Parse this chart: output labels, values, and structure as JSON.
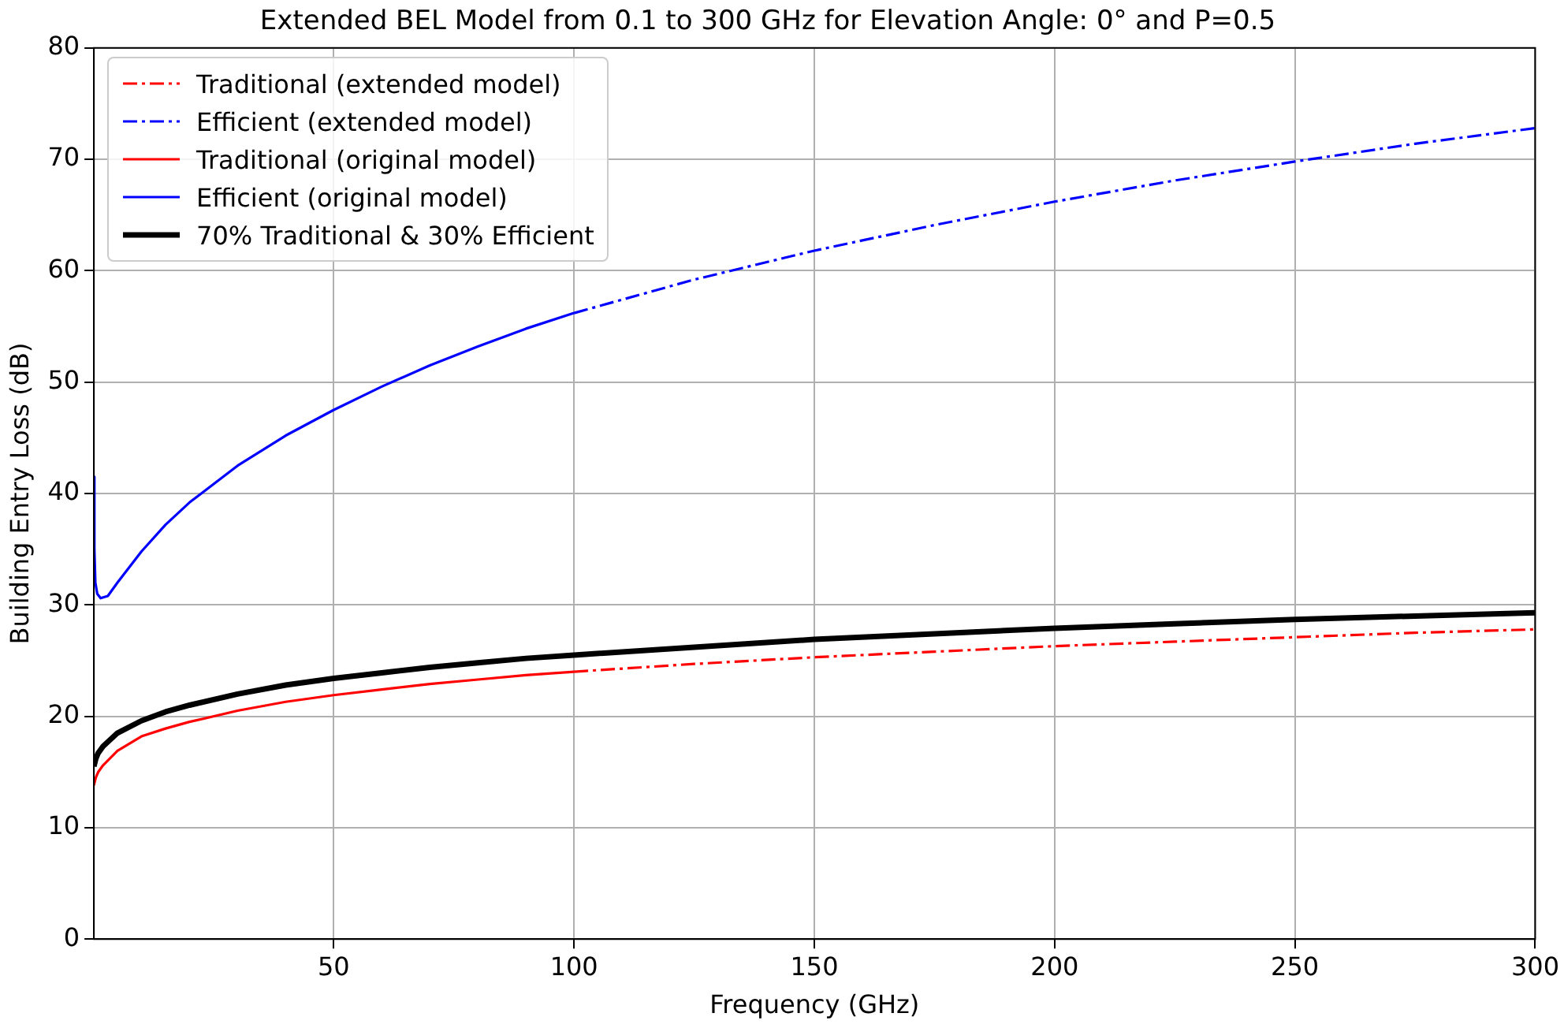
{
  "chart_data": {
    "type": "line",
    "title": "Extended BEL Model from 0.1 to 300 GHz for Elevation Angle: 0° and P=0.5",
    "xlabel": "Frequency (GHz)",
    "ylabel": "Building Entry Loss (dB)",
    "xlim": [
      0.1,
      300
    ],
    "xticks": [
      50,
      100,
      150,
      200,
      250,
      300
    ],
    "ylim": [
      0,
      80
    ],
    "yticks": [
      0,
      10,
      20,
      30,
      40,
      50,
      60,
      70,
      80
    ],
    "grid": true,
    "legend": "top left",
    "marker": "none",
    "series": [
      {
        "name": "Traditional (extended model)",
        "color": "#ff0000",
        "line_style": "dashed",
        "x": [
          100,
          125,
          150,
          175,
          200,
          225,
          250,
          275,
          300
        ],
        "values": [
          24.0,
          24.7,
          25.3,
          25.8,
          26.3,
          26.7,
          27.1,
          27.5,
          27.8
        ]
      },
      {
        "name": "Efficient (extended model)",
        "color": "#0000ff",
        "line_style": "dashed",
        "x": [
          100,
          125,
          150,
          175,
          200,
          225,
          250,
          275,
          300
        ],
        "values": [
          56.2,
          59.2,
          61.8,
          64.1,
          66.2,
          68.1,
          69.8,
          71.4,
          72.8
        ]
      },
      {
        "name": "Traditional (original model)",
        "color": "#ff0000",
        "line_style": "solid",
        "x": [
          0.1,
          0.5,
          1,
          2,
          5,
          10,
          15,
          20,
          30,
          40,
          50,
          60,
          70,
          80,
          90,
          100
        ],
        "values": [
          13.8,
          14.5,
          15.0,
          15.6,
          16.9,
          18.2,
          18.9,
          19.5,
          20.5,
          21.3,
          21.9,
          22.4,
          22.9,
          23.3,
          23.7,
          24.0
        ]
      },
      {
        "name": "Efficient (original model)",
        "color": "#0000ff",
        "line_style": "solid",
        "x": [
          0.1,
          0.2,
          0.4,
          0.8,
          1.5,
          3,
          5,
          10,
          15,
          20,
          30,
          40,
          50,
          60,
          70,
          80,
          90,
          100
        ],
        "values": [
          41.5,
          35,
          32,
          31,
          30.6,
          30.8,
          32,
          34.8,
          37.2,
          39.2,
          42.5,
          45.2,
          47.5,
          49.6,
          51.5,
          53.2,
          54.8,
          56.2
        ]
      },
      {
        "name": "70% Traditional & 30% Efficient",
        "color": "#000000",
        "line_style": "solid",
        "x": [
          0.1,
          0.5,
          1,
          2,
          5,
          10,
          15,
          20,
          30,
          40,
          50,
          60,
          70,
          80,
          90,
          100,
          125,
          150,
          175,
          200,
          225,
          250,
          275,
          300
        ],
        "values": [
          15.5,
          16.2,
          16.7,
          17.3,
          18.5,
          19.6,
          20.4,
          21.0,
          22.0,
          22.8,
          23.4,
          23.9,
          24.4,
          24.8,
          25.2,
          25.5,
          26.2,
          26.9,
          27.4,
          27.9,
          28.3,
          28.7,
          29.0,
          29.3
        ]
      }
    ]
  }
}
